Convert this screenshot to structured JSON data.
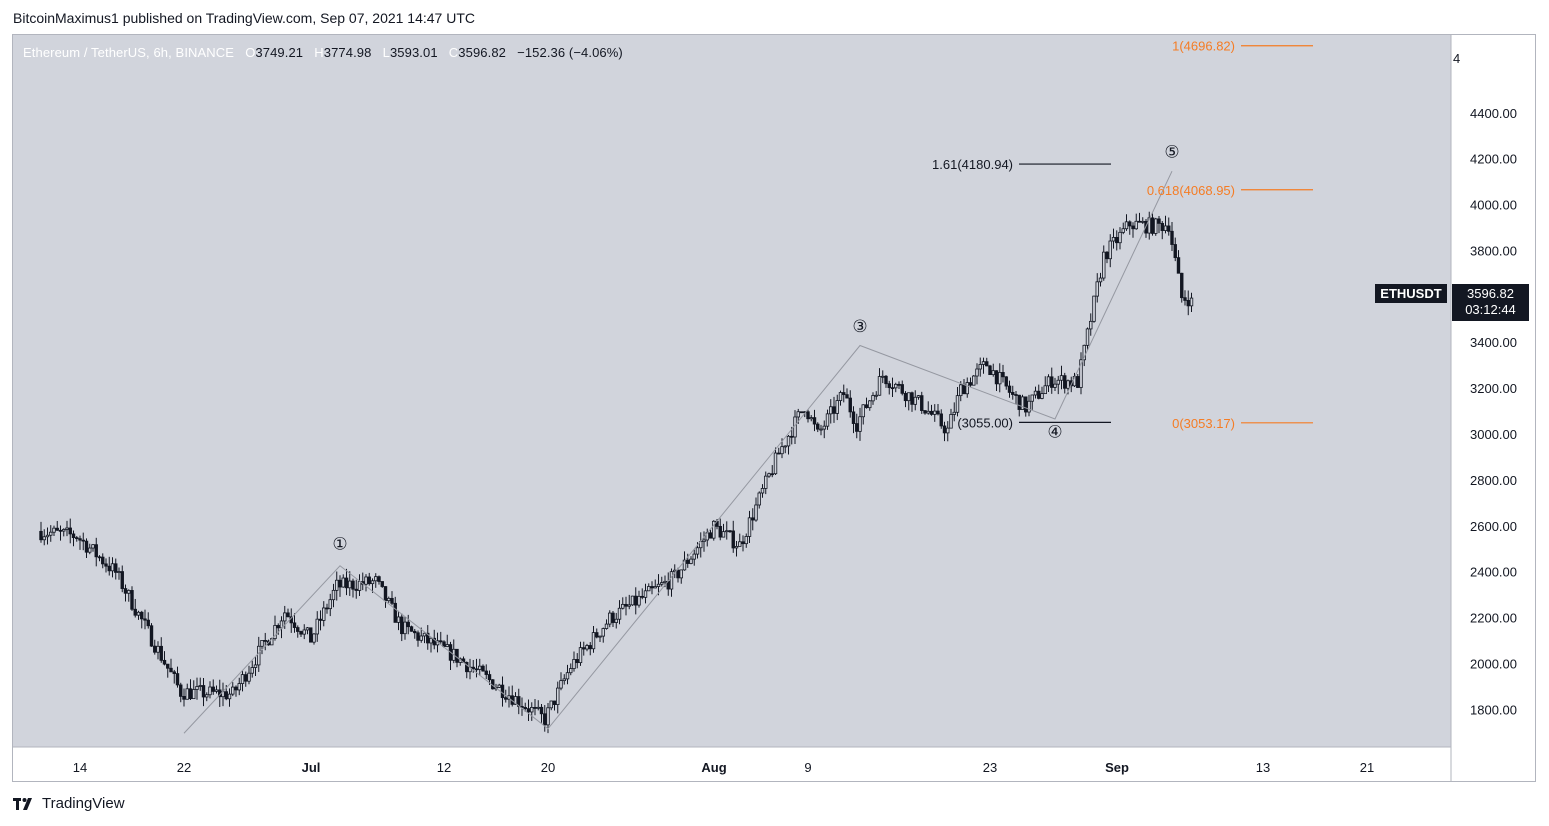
{
  "header": {
    "publisher": "BitcoinMaximus1 published on TradingView.com, Sep 07, 2021 14:47 UTC"
  },
  "symbol_line": {
    "name": "Ethereum / TetherUS, 6h, BINANCE",
    "o_label": "O",
    "o_value": "3749.21",
    "h_label": "H",
    "h_value": "3774.98",
    "l_label": "L",
    "l_value": "3593.01",
    "c_label": "C",
    "c_value": "3596.82",
    "change": "−152.36 (−4.06%)"
  },
  "badges": {
    "symbol": "ETHUSDT",
    "price": "3596.82",
    "countdown": "03:12:44"
  },
  "footer": {
    "brand": "TradingView"
  },
  "colors": {
    "background": "#d1d4dc",
    "candle": "#131722",
    "fib": "#f57c24",
    "wave_line": "#9598a1",
    "level_line": "#131722"
  },
  "chart_data": {
    "type": "candlestick",
    "price_unit": "USDT",
    "y_ticks": [
      "4400.00",
      "4200.00",
      "4000.00",
      "3800.00",
      "3600.00",
      "3400.00",
      "3200.00",
      "3000.00",
      "2800.00",
      "2600.00",
      "2400.00",
      "2200.00",
      "2000.00",
      "1800.00"
    ],
    "y_top_partial": "4",
    "x_ticks": [
      "14",
      "22",
      "Jul",
      "12",
      "20",
      "Aug",
      "9",
      "23",
      "Sep",
      "13",
      "21"
    ],
    "ylim": [
      1640,
      4700
    ],
    "wave_labels": [
      {
        "label": "①",
        "date": "2021-07-04",
        "price": 2500
      },
      {
        "label": "③",
        "date": "2021-08-13",
        "price": 3450
      },
      {
        "label": "④",
        "date": "2021-08-28",
        "price": 2990
      },
      {
        "label": "⑤",
        "date": "2021-09-06",
        "price": 4210
      }
    ],
    "wave_path": [
      {
        "date": "2021-06-22",
        "price": 1700
      },
      {
        "date": "2021-07-04",
        "price": 2430
      },
      {
        "date": "2021-07-20",
        "price": 1720
      },
      {
        "date": "2021-08-13",
        "price": 3390
      },
      {
        "date": "2021-08-28",
        "price": 3070
      },
      {
        "date": "2021-09-06",
        "price": 4150
      }
    ],
    "levels": [
      {
        "label": "1.61(4180.94)",
        "price": 4180.94,
        "color": "black"
      },
      {
        "label": "(3055.00)",
        "price": 3055.0,
        "color": "black"
      },
      {
        "label": "0.618(4068.95)",
        "price": 4068.95,
        "color": "orange"
      },
      {
        "label": "0(3053.17)",
        "price": 3053.17,
        "color": "orange"
      },
      {
        "label": "1(4696.82)",
        "price": 4696.82,
        "color": "orange"
      }
    ],
    "anchors": [
      {
        "date": "2021-06-11",
        "price": 2580
      },
      {
        "date": "2021-06-14",
        "price": 2560
      },
      {
        "date": "2021-06-17",
        "price": 2400
      },
      {
        "date": "2021-06-22",
        "price": 1880
      },
      {
        "date": "2021-06-26",
        "price": 1870
      },
      {
        "date": "2021-06-30",
        "price": 2230
      },
      {
        "date": "2021-07-02",
        "price": 2110
      },
      {
        "date": "2021-07-04",
        "price": 2340
      },
      {
        "date": "2021-07-07",
        "price": 2360
      },
      {
        "date": "2021-07-09",
        "price": 2160
      },
      {
        "date": "2021-07-13",
        "price": 2040
      },
      {
        "date": "2021-07-15",
        "price": 1960
      },
      {
        "date": "2021-07-20",
        "price": 1760
      },
      {
        "date": "2021-07-22",
        "price": 1990
      },
      {
        "date": "2021-07-25",
        "price": 2200
      },
      {
        "date": "2021-07-30",
        "price": 2380
      },
      {
        "date": "2021-08-02",
        "price": 2600
      },
      {
        "date": "2021-08-04",
        "price": 2520
      },
      {
        "date": "2021-08-07",
        "price": 2920
      },
      {
        "date": "2021-08-09",
        "price": 3130
      },
      {
        "date": "2021-08-10",
        "price": 3000
      },
      {
        "date": "2021-08-12",
        "price": 3180
      },
      {
        "date": "2021-08-13",
        "price": 3050
      },
      {
        "date": "2021-08-15",
        "price": 3260
      },
      {
        "date": "2021-08-18",
        "price": 3130
      },
      {
        "date": "2021-08-20",
        "price": 3020
      },
      {
        "date": "2021-08-21",
        "price": 3200
      },
      {
        "date": "2021-08-23",
        "price": 3310
      },
      {
        "date": "2021-08-25",
        "price": 3170
      },
      {
        "date": "2021-08-26",
        "price": 3120
      },
      {
        "date": "2021-08-28",
        "price": 3240
      },
      {
        "date": "2021-08-30",
        "price": 3230
      },
      {
        "date": "2021-09-01",
        "price": 3780
      },
      {
        "date": "2021-09-03",
        "price": 3920
      },
      {
        "date": "2021-09-05",
        "price": 3910
      },
      {
        "date": "2021-09-06",
        "price": 3920
      },
      {
        "date": "2021-09-07",
        "price": 3597
      }
    ],
    "start_date": "2021-06-11",
    "end_date": "2021-09-07"
  }
}
